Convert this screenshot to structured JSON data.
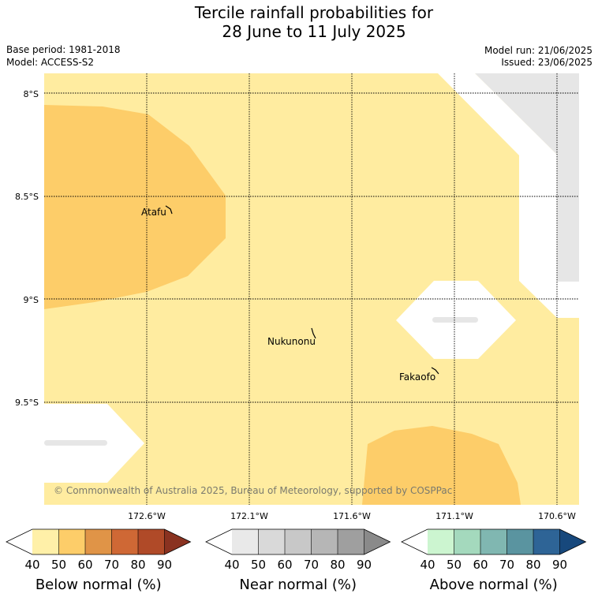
{
  "header": {
    "title_line1": "Tercile rainfall probabilities for",
    "title_line2": "28 June to 11 July 2025",
    "base_period": "Base period: 1981-2018",
    "model": "Model: ACCESS-S2",
    "model_run": "Model run: 21/06/2025",
    "issued": "Issued: 23/06/2025"
  },
  "map": {
    "lat_labels": [
      "8°S",
      "8.5°S",
      "9°S",
      "9.5°S"
    ],
    "lon_labels": [
      "172.6°W",
      "172.1°W",
      "171.6°W",
      "171.1°W",
      "170.6°W"
    ],
    "places": {
      "atafu": "Atafu",
      "nukunonu": "Nukunonu",
      "fakaofo": "Fakaofo"
    },
    "credit": "© Commonwealth of Australia 2025, Bureau of Meteorology, supported by COSPPac",
    "region_categories": [
      "Below normal 40-50%",
      "Below normal 50-60%",
      "Near normal",
      "No dominant category"
    ]
  },
  "legend": {
    "ticks": [
      "40",
      "50",
      "60",
      "70",
      "80",
      "90"
    ],
    "below": {
      "label": "Below normal (%)",
      "colors": [
        "#fff0a8",
        "#fdcd69",
        "#e09447",
        "#cf6835",
        "#b04a28",
        "#8a3220"
      ]
    },
    "near": {
      "label": "Near normal (%)",
      "colors": [
        "#e9e9e9",
        "#d9d9d9",
        "#c8c8c8",
        "#b6b6b6",
        "#9f9f9f",
        "#8a8a8a"
      ]
    },
    "above": {
      "label": "Above normal (%)",
      "colors": [
        "#ccf5d0",
        "#a4d9bd",
        "#80b7b1",
        "#5a94a0",
        "#2e6496",
        "#17487c"
      ]
    }
  }
}
